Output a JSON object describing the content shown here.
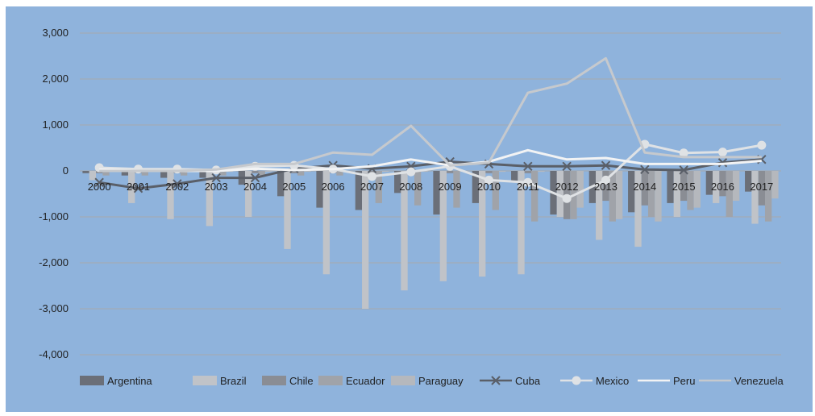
{
  "chart_data": {
    "type": "bar",
    "title": "",
    "xlabel": "",
    "ylabel": "",
    "ylim": [
      -4000,
      3000
    ],
    "yticks": [
      3000,
      2000,
      1000,
      0,
      -1000,
      -2000,
      -3000,
      -4000
    ],
    "ytick_labels": [
      "3,000",
      "2,000",
      "1,000",
      "0",
      "-1,000",
      "-2,000",
      "-3,000",
      "-4,000"
    ],
    "grid": true,
    "legend_position": "bottom",
    "categories": [
      "2000",
      "2001",
      "2002",
      "2003",
      "2004",
      "2005",
      "2006",
      "2007",
      "2008",
      "2009",
      "2010",
      "2011",
      "2012",
      "2013",
      "2014",
      "2015",
      "2016",
      "2017"
    ],
    "bar_series": [
      {
        "name": "Argentina",
        "color": "#6b6f78",
        "values": [
          -50,
          -100,
          -150,
          -150,
          -300,
          -550,
          -800,
          -850,
          -480,
          -950,
          -700,
          -250,
          -950,
          -700,
          -900,
          -700,
          -520,
          -450
        ]
      },
      {
        "name": "Brazil",
        "color": "#c0c3c8",
        "values": [
          -200,
          -700,
          -1050,
          -1200,
          -1000,
          -1700,
          -2250,
          -3000,
          -2600,
          -2400,
          -2300,
          -2250,
          -1000,
          -1500,
          -1650,
          -1000,
          -700,
          -1150
        ]
      },
      {
        "name": "Chile",
        "color": "#8a8d94",
        "values": [
          -50,
          -50,
          -50,
          -50,
          -50,
          -50,
          -50,
          -50,
          -50,
          -50,
          -50,
          -50,
          -1050,
          -650,
          -750,
          -650,
          -550,
          -750
        ]
      },
      {
        "name": "Ecuador",
        "color": "#a0a3a9",
        "values": [
          -100,
          -100,
          -100,
          -100,
          -100,
          -100,
          -100,
          -700,
          -750,
          -800,
          -850,
          -1100,
          -1050,
          -1100,
          -1000,
          -850,
          -1000,
          -1100
        ]
      },
      {
        "name": "Paraguay",
        "color": "#b5b8bd",
        "values": [
          -20,
          -20,
          -20,
          -20,
          -20,
          -20,
          -20,
          -20,
          -20,
          -20,
          -20,
          -20,
          -800,
          -1050,
          -1100,
          -800,
          -650,
          -600
        ]
      }
    ],
    "line_series": [
      {
        "name": "Cuba",
        "color": "#5a5f68",
        "marker": "x",
        "values": [
          -250,
          -380,
          -280,
          -150,
          -150,
          50,
          120,
          50,
          100,
          200,
          150,
          100,
          100,
          120,
          30,
          20,
          180,
          250
        ]
      },
      {
        "name": "Mexico",
        "color": "#dfe2e5",
        "marker": "circle",
        "values": [
          70,
          40,
          40,
          20,
          100,
          120,
          40,
          -120,
          -20,
          100,
          -200,
          -250,
          -600,
          -200,
          580,
          390,
          410,
          560
        ]
      },
      {
        "name": "Peru",
        "color": "#f2f3f4",
        "marker": "none",
        "values": [
          30,
          0,
          0,
          0,
          50,
          20,
          40,
          100,
          250,
          120,
          200,
          450,
          250,
          280,
          150,
          150,
          150,
          220
        ]
      },
      {
        "name": "Venezuela",
        "color": "#c6c9cd",
        "marker": "none",
        "values": [
          0,
          0,
          0,
          30,
          150,
          150,
          400,
          350,
          980,
          120,
          180,
          1700,
          1900,
          2450,
          400,
          300,
          300,
          300
        ]
      }
    ]
  }
}
